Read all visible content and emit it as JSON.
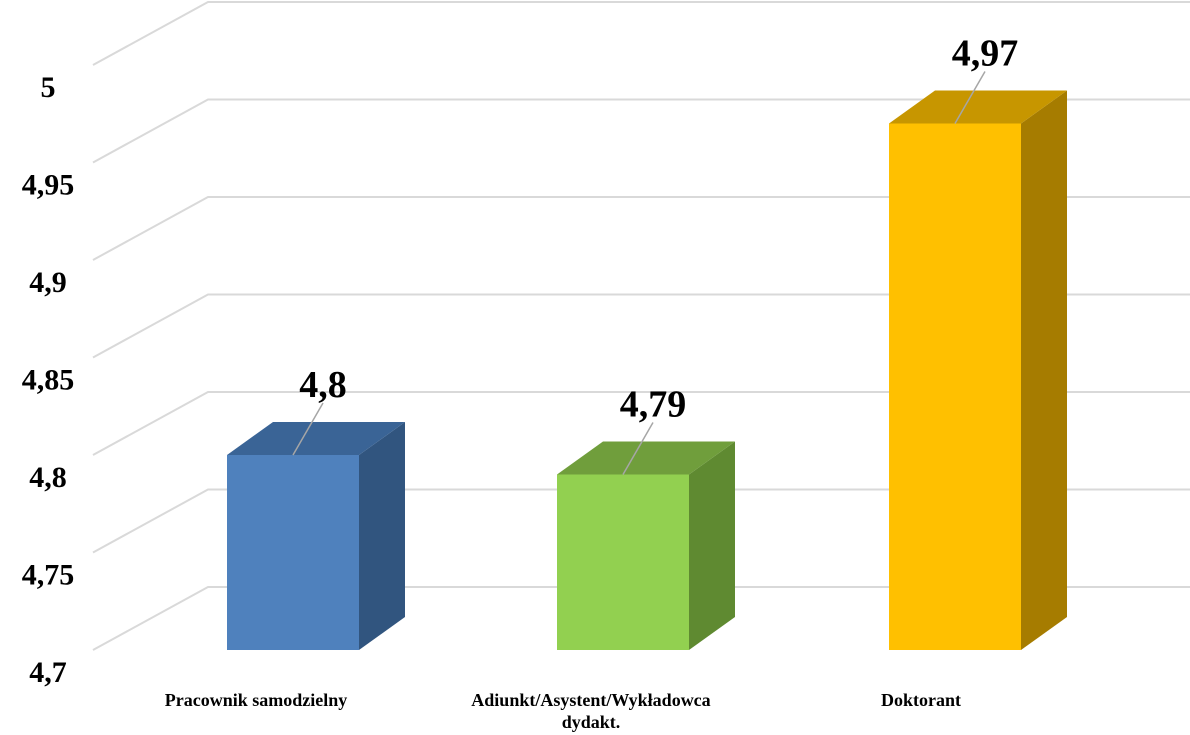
{
  "chart_data": {
    "type": "bar",
    "categories": [
      "Pracownik samodzielny",
      "Adiunkt/Asystent/Wykładowca dydakt.",
      "Doktorant"
    ],
    "category_lines": [
      [
        "Pracownik samodzielny"
      ],
      [
        "Adiunkt/Asystent/Wykładowca",
        "dydakt."
      ],
      [
        "Doktorant"
      ]
    ],
    "values": [
      4.8,
      4.79,
      4.97
    ],
    "value_labels": [
      "4,8",
      "4,79",
      "4,97"
    ],
    "ylim": [
      4.7,
      5.0
    ],
    "y_ticks": [
      4.7,
      4.75,
      4.8,
      4.85,
      4.9,
      4.95,
      5.0
    ],
    "y_tick_labels": [
      "4,7",
      "4,75",
      "4,8",
      "4,85",
      "4,9",
      "4,95",
      "5"
    ],
    "grid": true,
    "style": "3d-column",
    "colors": [
      {
        "front": "#4f81bd",
        "side": "#31557f",
        "top": "#3a6496"
      },
      {
        "front": "#92d050",
        "side": "#5f8a31",
        "top": "#709e3c"
      },
      {
        "front": "#ffc000",
        "side": "#a67c00",
        "top": "#c79600"
      }
    ]
  }
}
